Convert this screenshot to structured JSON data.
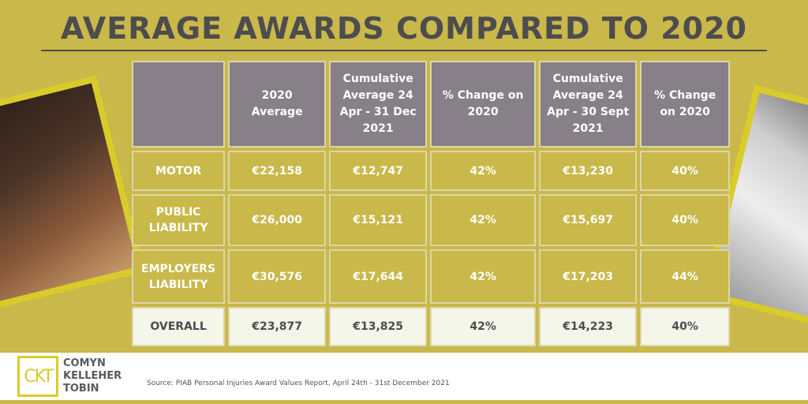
{
  "title": "AVERAGE AWARDS COMPARED TO 2020",
  "table": {
    "headers": [
      "",
      "2020 Average",
      "Cumulative Average 24 Apr - 31 Dec 2021",
      "% Change on 2020",
      "Cumulative Average 24 Apr - 30 Sept 2021",
      "% Change on 2020"
    ],
    "rows": [
      [
        "MOTOR",
        "€22,158",
        "€12,747",
        "42%",
        "€13,230",
        "40%"
      ],
      [
        "PUBLIC LIABILITY",
        "€26,000",
        "€15,121",
        "42%",
        "€15,697",
        "40%"
      ],
      [
        "EMPLOYERS LIABILITY",
        "€30,576",
        "€17,644",
        "42%",
        "€17,203",
        "44%"
      ],
      [
        "OVERALL",
        "€23,877",
        "€13,825",
        "42%",
        "€14,223",
        "40%"
      ]
    ]
  },
  "footer": {
    "logo": "CKT",
    "brand_lines": [
      "COMYN",
      "KELLEHER",
      "TOBIN"
    ],
    "source": "Source: PIAB Personal Injuries Award Values Report, April 24th - 31st December 2021"
  },
  "colors": {
    "background": "#c9b84a",
    "header": "#878088",
    "overall_row": "#f5f6ea",
    "title": "#4d4c4f",
    "accent": "#d9cc2a"
  }
}
